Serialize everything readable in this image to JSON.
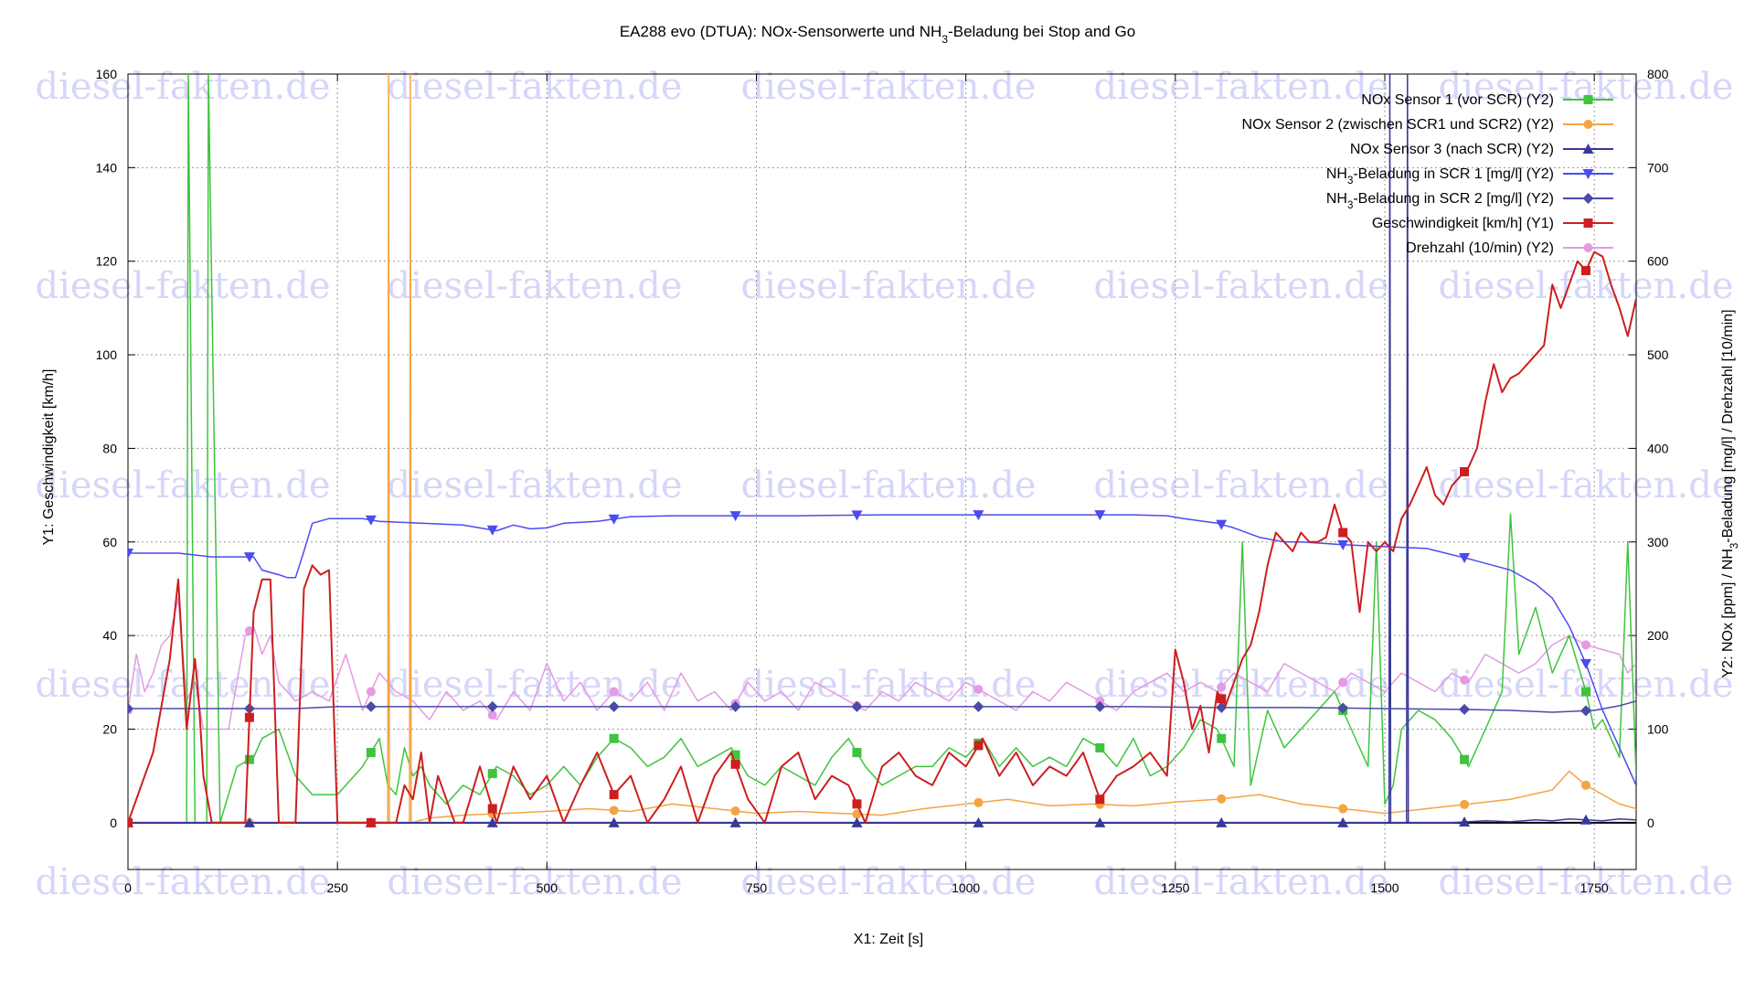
{
  "chart_data": {
    "type": "line",
    "title": "EA288 evo (DTUA): NOx-Sensorwerte und NH3-Beladung bei Stop and Go",
    "xlabel": "X1: Zeit [s]",
    "ylabel": "Y1: Geschwindigkeit [km/h]",
    "y2label": "Y2: NOx [ppm] / NH3-Beladung [mg/l] / Drehzahl [10/min]",
    "xlim": [
      0,
      1800
    ],
    "ylim": [
      -10,
      160
    ],
    "y2lim": [
      -50,
      800
    ],
    "xticks": [
      "0",
      "250",
      "500",
      "750",
      "1000",
      "1250",
      "1500",
      "1750"
    ],
    "yticks": [
      "0",
      "20",
      "40",
      "60",
      "80",
      "100",
      "120",
      "140",
      "160"
    ],
    "y2ticks": [
      "0",
      "100",
      "200",
      "300",
      "400",
      "500",
      "600",
      "700",
      "800"
    ],
    "grid": true,
    "legend_position": "top-right",
    "watermark": "diesel-fakten.de",
    "series": [
      {
        "name": "NOx Sensor 1 (vor SCR) (Y2)",
        "axis": "y2",
        "color": "#3ec43e",
        "marker": "square",
        "x": [
          0,
          30,
          60,
          70,
          72,
          80,
          94,
          96,
          110,
          130,
          150,
          160,
          180,
          200,
          220,
          250,
          260,
          280,
          300,
          310,
          320,
          330,
          340,
          350,
          360,
          380,
          400,
          420,
          440,
          460,
          480,
          500,
          520,
          540,
          560,
          580,
          600,
          620,
          640,
          660,
          680,
          700,
          720,
          740,
          760,
          780,
          800,
          820,
          840,
          860,
          880,
          900,
          920,
          940,
          960,
          980,
          1000,
          1020,
          1040,
          1060,
          1080,
          1100,
          1120,
          1140,
          1160,
          1180,
          1200,
          1220,
          1240,
          1260,
          1280,
          1300,
          1320,
          1330,
          1340,
          1360,
          1380,
          1400,
          1420,
          1440,
          1460,
          1480,
          1490,
          1500,
          1510,
          1520,
          1540,
          1560,
          1580,
          1600,
          1620,
          1640,
          1650,
          1660,
          1680,
          1700,
          1720,
          1740,
          1750,
          1760,
          1780,
          1790,
          1800
        ],
        "y": [
          0,
          0,
          0,
          0,
          800,
          0,
          0,
          800,
          0,
          60,
          70,
          90,
          100,
          50,
          30,
          30,
          40,
          60,
          90,
          40,
          30,
          80,
          50,
          60,
          40,
          20,
          40,
          30,
          60,
          50,
          30,
          40,
          60,
          40,
          70,
          90,
          80,
          60,
          70,
          90,
          60,
          70,
          80,
          50,
          40,
          60,
          50,
          40,
          70,
          90,
          60,
          40,
          50,
          60,
          60,
          80,
          70,
          90,
          60,
          80,
          60,
          70,
          60,
          90,
          80,
          60,
          90,
          50,
          60,
          80,
          110,
          100,
          60,
          300,
          40,
          120,
          80,
          100,
          120,
          140,
          100,
          60,
          300,
          20,
          40,
          100,
          120,
          110,
          90,
          60,
          100,
          140,
          330,
          180,
          230,
          160,
          200,
          140,
          100,
          110,
          70,
          300,
          50
        ]
      },
      {
        "name": "NOx Sensor 2 (zwischen SCR1 und SCR2) (Y2)",
        "axis": "y2",
        "color": "#f4a443",
        "marker": "circle",
        "x": [
          0,
          310,
          311,
          312,
          336,
          337,
          338,
          360,
          400,
          450,
          500,
          550,
          600,
          650,
          700,
          750,
          800,
          850,
          900,
          950,
          1000,
          1050,
          1100,
          1150,
          1200,
          1250,
          1300,
          1350,
          1400,
          1450,
          1500,
          1550,
          1600,
          1650,
          1700,
          1720,
          1740,
          1760,
          1780,
          1800
        ],
        "y": [
          0,
          0,
          800,
          0,
          0,
          800,
          0,
          5,
          8,
          10,
          12,
          15,
          12,
          20,
          15,
          10,
          12,
          10,
          8,
          15,
          20,
          25,
          18,
          20,
          18,
          22,
          25,
          30,
          20,
          15,
          10,
          15,
          20,
          25,
          35,
          55,
          40,
          30,
          20,
          15
        ]
      },
      {
        "name": "NOx Sensor 3 (nach SCR) (Y2)",
        "axis": "y2",
        "color": "#39399a",
        "marker": "triangle-up",
        "x": [
          0,
          1505,
          1506,
          1507,
          1526,
          1527,
          1528,
          1580,
          1600,
          1620,
          1650,
          1680,
          1700,
          1720,
          1740,
          1760,
          1780,
          1800
        ],
        "y": [
          0,
          0,
          800,
          0,
          0,
          800,
          0,
          0,
          1,
          2,
          1,
          3,
          2,
          4,
          3,
          2,
          4,
          3
        ]
      },
      {
        "name": "NH3-Beladung in SCR 1 [mg/l] (Y2)",
        "axis": "y2",
        "color": "#4b4bf0",
        "marker": "triangle-down",
        "x": [
          0,
          60,
          100,
          150,
          160,
          180,
          190,
          200,
          210,
          220,
          240,
          280,
          300,
          350,
          400,
          440,
          460,
          480,
          500,
          520,
          560,
          600,
          650,
          700,
          750,
          800,
          900,
          1000,
          1100,
          1200,
          1240,
          1260,
          1300,
          1320,
          1350,
          1380,
          1400,
          1450,
          1500,
          1550,
          1600,
          1650,
          1680,
          1700,
          1720,
          1740,
          1760,
          1780,
          1800
        ],
        "y": [
          288,
          288,
          284,
          284,
          270,
          265,
          262,
          262,
          290,
          320,
          325,
          325,
          322,
          320,
          318,
          312,
          318,
          314,
          315,
          320,
          322,
          327,
          328,
          328,
          328,
          328,
          329,
          329,
          329,
          329,
          328,
          325,
          320,
          315,
          305,
          300,
          300,
          297,
          295,
          293,
          282,
          270,
          255,
          240,
          210,
          170,
          120,
          80,
          40
        ]
      },
      {
        "name": "NH3-Beladung in SCR 2 [mg/l] (Y2)",
        "axis": "y2",
        "color": "#4a4aa8",
        "marker": "diamond",
        "x": [
          0,
          100,
          150,
          200,
          250,
          300,
          400,
          500,
          600,
          700,
          800,
          900,
          1000,
          1100,
          1200,
          1300,
          1400,
          1500,
          1600,
          1650,
          1700,
          1750,
          1780,
          1800
        ],
        "y": [
          122,
          122,
          122,
          122,
          124,
          124,
          124,
          124,
          124,
          124,
          124,
          124,
          124,
          124,
          124,
          123,
          123,
          122,
          121,
          120,
          118,
          120,
          125,
          130
        ]
      },
      {
        "name": "Geschwindigkeit [km/h] (Y1)",
        "axis": "y1",
        "color": "#cc1f1f",
        "marker": "square",
        "x": [
          0,
          10,
          20,
          30,
          40,
          50,
          60,
          70,
          80,
          85,
          90,
          100,
          110,
          120,
          130,
          140,
          150,
          160,
          170,
          180,
          190,
          200,
          210,
          220,
          230,
          240,
          250,
          260,
          270,
          280,
          290,
          300,
          310,
          320,
          330,
          340,
          350,
          360,
          370,
          380,
          390,
          400,
          420,
          440,
          460,
          480,
          500,
          520,
          540,
          560,
          580,
          600,
          620,
          640,
          660,
          680,
          700,
          720,
          740,
          760,
          780,
          800,
          820,
          840,
          860,
          880,
          900,
          920,
          940,
          960,
          980,
          1000,
          1020,
          1040,
          1060,
          1080,
          1100,
          1120,
          1140,
          1160,
          1180,
          1200,
          1220,
          1240,
          1250,
          1260,
          1270,
          1280,
          1290,
          1300,
          1310,
          1320,
          1330,
          1340,
          1350,
          1360,
          1370,
          1380,
          1390,
          1400,
          1410,
          1420,
          1430,
          1440,
          1450,
          1460,
          1470,
          1480,
          1490,
          1500,
          1510,
          1520,
          1530,
          1540,
          1550,
          1560,
          1570,
          1580,
          1590,
          1600,
          1610,
          1620,
          1630,
          1640,
          1650,
          1660,
          1670,
          1680,
          1690,
          1700,
          1710,
          1720,
          1730,
          1740,
          1750,
          1760,
          1770,
          1780,
          1790,
          1800
        ],
        "y": [
          0,
          5,
          10,
          15,
          25,
          35,
          52,
          20,
          35,
          25,
          10,
          0,
          0,
          0,
          0,
          0,
          45,
          52,
          52,
          0,
          0,
          0,
          50,
          55,
          53,
          54,
          0,
          0,
          0,
          0,
          0,
          0,
          0,
          0,
          8,
          5,
          15,
          0,
          10,
          5,
          0,
          0,
          12,
          0,
          12,
          5,
          10,
          0,
          8,
          15,
          6,
          10,
          0,
          5,
          12,
          0,
          10,
          15,
          5,
          0,
          12,
          15,
          5,
          10,
          8,
          0,
          12,
          15,
          10,
          8,
          15,
          12,
          18,
          10,
          15,
          8,
          12,
          10,
          15,
          5,
          10,
          12,
          15,
          10,
          37,
          30,
          20,
          25,
          15,
          28,
          25,
          30,
          35,
          38,
          45,
          55,
          62,
          60,
          58,
          62,
          60,
          60,
          61,
          68,
          62,
          60,
          45,
          60,
          58,
          60,
          58,
          65,
          68,
          72,
          76,
          70,
          68,
          72,
          74,
          76,
          80,
          90,
          98,
          92,
          95,
          96,
          98,
          100,
          102,
          115,
          110,
          115,
          120,
          118,
          122,
          121,
          115,
          110,
          104,
          112
        ]
      },
      {
        "name": "Drehzahl (10/min) (Y2)",
        "axis": "y2",
        "color": "#e49ae4",
        "marker": "circle",
        "x": [
          0,
          10,
          20,
          30,
          40,
          50,
          60,
          70,
          80,
          90,
          100,
          120,
          140,
          150,
          160,
          170,
          180,
          190,
          200,
          220,
          240,
          260,
          280,
          300,
          320,
          340,
          360,
          380,
          400,
          420,
          440,
          460,
          480,
          500,
          520,
          540,
          560,
          580,
          600,
          620,
          640,
          660,
          680,
          700,
          720,
          740,
          760,
          780,
          800,
          820,
          840,
          860,
          880,
          900,
          920,
          940,
          960,
          980,
          1000,
          1020,
          1040,
          1060,
          1080,
          1100,
          1120,
          1140,
          1160,
          1180,
          1200,
          1220,
          1240,
          1260,
          1280,
          1300,
          1320,
          1340,
          1360,
          1380,
          1400,
          1420,
          1440,
          1460,
          1480,
          1500,
          1520,
          1540,
          1560,
          1580,
          1600,
          1620,
          1640,
          1660,
          1680,
          1700,
          1720,
          1740,
          1760,
          1780,
          1790,
          1800
        ],
        "y": [
          120,
          180,
          140,
          160,
          190,
          200,
          240,
          130,
          150,
          100,
          100,
          100,
          200,
          210,
          180,
          200,
          150,
          140,
          130,
          140,
          130,
          180,
          120,
          160,
          140,
          130,
          110,
          140,
          120,
          130,
          110,
          140,
          120,
          170,
          130,
          150,
          120,
          140,
          130,
          150,
          120,
          160,
          130,
          140,
          120,
          150,
          130,
          140,
          120,
          150,
          140,
          130,
          120,
          140,
          130,
          150,
          140,
          130,
          150,
          140,
          130,
          120,
          140,
          130,
          150,
          140,
          130,
          120,
          140,
          150,
          160,
          140,
          150,
          140,
          160,
          150,
          140,
          170,
          160,
          150,
          140,
          160,
          150,
          140,
          160,
          150,
          140,
          160,
          150,
          180,
          170,
          160,
          170,
          190,
          200,
          190,
          185,
          180,
          160,
          170
        ]
      }
    ]
  }
}
